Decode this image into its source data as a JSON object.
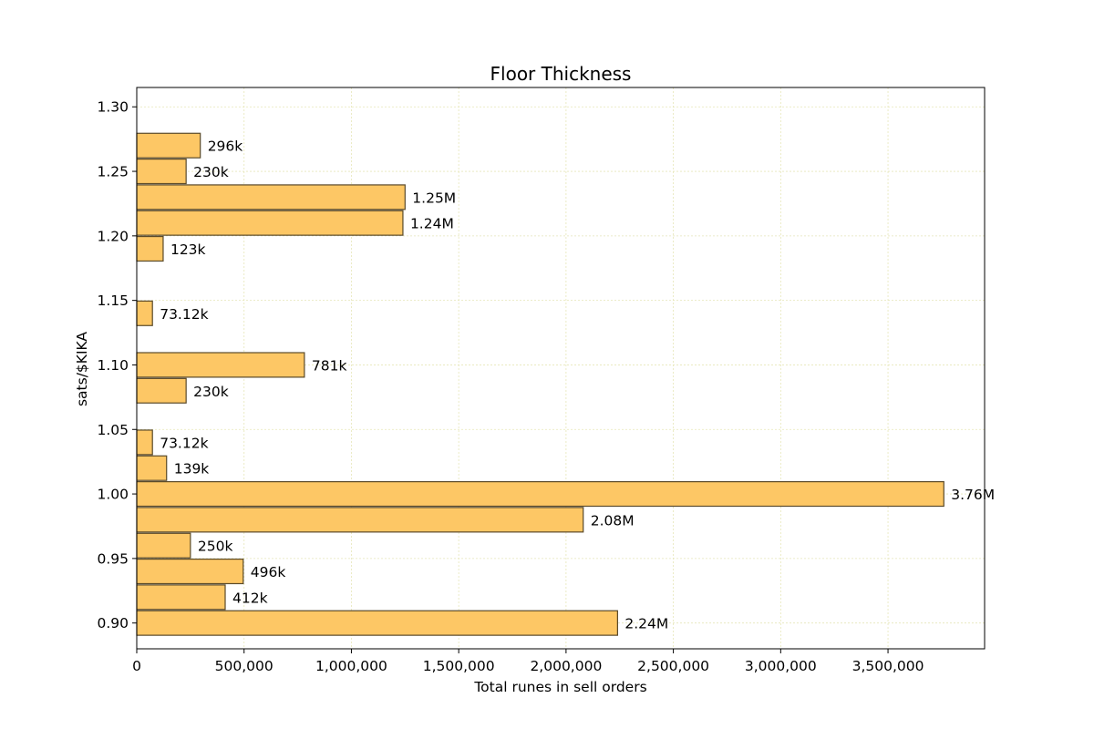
{
  "chart_data": {
    "type": "bar",
    "orientation": "horizontal",
    "title": "Floor Thickness",
    "xlabel": "Total runes in sell orders",
    "ylabel": "sats/$KIKA",
    "xlim": [
      0,
      3950000
    ],
    "ylim": [
      0.88,
      1.315
    ],
    "bin_height": 0.019,
    "xticks": [
      0,
      500000,
      1000000,
      1500000,
      2000000,
      2500000,
      3000000,
      3500000
    ],
    "xtick_labels": [
      "0",
      "500,000",
      "1,000,000",
      "1,500,000",
      "2,000,000",
      "2,500,000",
      "3,000,000",
      "3,500,000"
    ],
    "yticks": [
      0.9,
      0.95,
      1.0,
      1.05,
      1.1,
      1.15,
      1.2,
      1.25,
      1.3
    ],
    "ytick_labels": [
      "0.90",
      "0.95",
      "1.00",
      "1.05",
      "1.10",
      "1.15",
      "1.20",
      "1.25",
      "1.30"
    ],
    "grid": true,
    "bar_color": "#fdc765",
    "bar_edge_color": "#5a4a2a",
    "grid_color": "#e6e6b8",
    "bars": [
      {
        "y": 0.9,
        "value": 2240000,
        "label": "2.24M"
      },
      {
        "y": 0.92,
        "value": 412000,
        "label": "412k"
      },
      {
        "y": 0.94,
        "value": 496000,
        "label": "496k"
      },
      {
        "y": 0.96,
        "value": 250000,
        "label": "250k"
      },
      {
        "y": 0.98,
        "value": 2080000,
        "label": "2.08M"
      },
      {
        "y": 1.0,
        "value": 3760000,
        "label": "3.76M"
      },
      {
        "y": 1.02,
        "value": 139000,
        "label": "139k"
      },
      {
        "y": 1.04,
        "value": 73120,
        "label": "73.12k"
      },
      {
        "y": 1.08,
        "value": 230000,
        "label": "230k"
      },
      {
        "y": 1.1,
        "value": 781000,
        "label": "781k"
      },
      {
        "y": 1.14,
        "value": 73120,
        "label": "73.12k"
      },
      {
        "y": 1.19,
        "value": 123000,
        "label": "123k"
      },
      {
        "y": 1.21,
        "value": 1240000,
        "label": "1.24M"
      },
      {
        "y": 1.23,
        "value": 1250000,
        "label": "1.25M"
      },
      {
        "y": 1.25,
        "value": 230000,
        "label": "230k"
      },
      {
        "y": 1.27,
        "value": 296000,
        "label": "296k"
      }
    ]
  }
}
